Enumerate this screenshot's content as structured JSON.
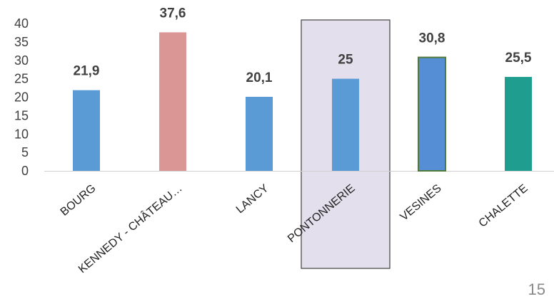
{
  "chart_data": {
    "type": "bar",
    "categories": [
      "BOURG",
      "KENNEDY - CHÂTEAU…",
      "LANCY",
      "PONTONNERIE",
      "VESINES",
      "CHALETTE"
    ],
    "values": [
      21.9,
      37.6,
      20.1,
      25,
      30.8,
      25.5
    ],
    "value_labels": [
      "21,9",
      "37,6",
      "20,1",
      "25",
      "30,8",
      "25,5"
    ],
    "bar_colors": [
      "#5b9bd5",
      "#d99694",
      "#5b9bd5",
      "#5b9bd5",
      "#558ed5",
      "#1f9e8f"
    ],
    "bar_outline_colors": [
      "none",
      "none",
      "none",
      "none",
      "#4e7a3a",
      "none"
    ],
    "highlighted_category": "PONTONNERIE",
    "highlight_fill": "#e4dfec",
    "highlight_stroke": "#404040",
    "yticks": [
      0,
      5,
      10,
      15,
      20,
      25,
      30,
      35,
      40
    ],
    "ylim": [
      0,
      40
    ],
    "title": "",
    "xlabel": "",
    "ylabel": "",
    "grid": false,
    "legend": "none"
  },
  "page": {
    "number": "15"
  }
}
